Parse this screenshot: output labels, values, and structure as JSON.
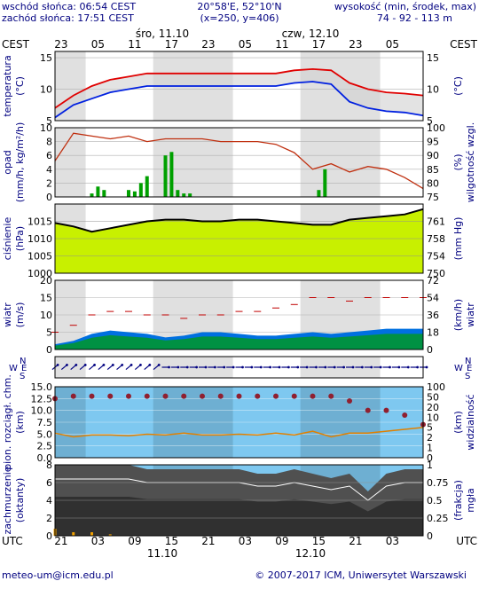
{
  "header": {
    "sunrise": "wschód słońca: 06:54 CEST",
    "sunset": "zachód słońca: 17:51 CEST",
    "coords": "20°58'E, 52°10'N",
    "grid": "(x=250, y=406)",
    "elevation_label": "wysokość (min, środek, max)",
    "elevation_values": "74 - 92 - 113 m"
  },
  "timeline": {
    "tz_top": "CEST",
    "tz_bottom": "UTC",
    "day1": "śro, 11.10",
    "day2": "czw, 12.10",
    "top_hours": [
      "23",
      "05",
      "11",
      "17",
      "23",
      "05",
      "11",
      "17",
      "23",
      "05"
    ],
    "bottom_hours": [
      "21",
      "03",
      "09",
      "15",
      "21",
      "03",
      "09",
      "15",
      "21",
      "03"
    ],
    "bottom_day1": "11.10",
    "bottom_day2": "12.10"
  },
  "footer": {
    "email": "meteo-um@icm.edu.pl",
    "copyright": "© 2007-2017 ICM, Uniwersytet Warszawski"
  },
  "colors": {
    "text": "#000080",
    "temp_max": "#e00000",
    "temp_min": "#0020e0",
    "humidity": "#c03010",
    "pressure_band": "#c8f000",
    "wind_fill": "#0070e0",
    "wind_green": "#00a000",
    "cloud_dark": "#505050",
    "sky": "#7ec8f0",
    "rain": "#00a000"
  },
  "chart_data": [
    {
      "type": "line",
      "name": "temperatura",
      "ylabel_left": "temperatura (°C)",
      "ylabel_right": "(°C)",
      "ylim": [
        5,
        16
      ],
      "yticks": [
        5,
        10,
        15
      ],
      "x_hours_utc": [
        0,
        3,
        6,
        9,
        12,
        15,
        18,
        21,
        24,
        27,
        30,
        33,
        36,
        39,
        42,
        45,
        48,
        51,
        54,
        57,
        60
      ],
      "series": [
        {
          "key": "max",
          "values": [
            7.0,
            9.0,
            10.5,
            11.5,
            12.0,
            12.5,
            12.5,
            12.5,
            12.5,
            12.5,
            12.5,
            12.5,
            12.5,
            13.0,
            13.2,
            13.0,
            11.0,
            10.0,
            9.5,
            9.3,
            9.0
          ]
        },
        {
          "key": "min",
          "values": [
            5.5,
            7.5,
            8.5,
            9.5,
            10.0,
            10.5,
            10.5,
            10.5,
            10.5,
            10.5,
            10.5,
            10.5,
            10.5,
            11.0,
            11.2,
            10.8,
            8.0,
            7.0,
            6.5,
            6.3,
            5.8
          ]
        }
      ]
    },
    {
      "type": "bar",
      "name": "opad i wilgotność",
      "ylabel_left": "opad (mm/h, kg/m²/h)",
      "ylabel_right": "wilgotność wzgl. (%)",
      "ylim": [
        0,
        10
      ],
      "yticks": [
        0,
        2,
        4,
        6,
        8,
        10
      ],
      "ylim_right": [
        75,
        100
      ],
      "yticks_right": [
        75,
        80,
        85,
        90,
        95,
        100
      ],
      "precip_x_hours_utc": [
        6,
        7,
        8,
        12,
        13,
        14,
        15,
        18,
        19,
        20,
        21,
        22,
        43,
        44
      ],
      "precip_values": [
        0.5,
        1.5,
        1.0,
        1.0,
        0.8,
        2.0,
        3.0,
        6.0,
        6.5,
        1.0,
        0.5,
        0.5,
        1.0,
        4.0
      ],
      "humidity_x_hours_utc": [
        0,
        3,
        6,
        9,
        12,
        15,
        18,
        21,
        24,
        27,
        30,
        33,
        36,
        39,
        42,
        45,
        48,
        51,
        54,
        57,
        60
      ],
      "humidity_values": [
        88,
        98,
        97,
        96,
        97,
        95,
        96,
        96,
        96,
        95,
        95,
        95,
        94,
        91,
        85,
        87,
        84,
        86,
        85,
        82,
        78
      ]
    },
    {
      "type": "area",
      "name": "ciśnienie",
      "ylabel_left": "ciśnienie (hPa)",
      "ylabel_right": "(mm Hg)",
      "ylim": [
        1000,
        1020
      ],
      "yticks": [
        1000,
        1005,
        1010,
        1015
      ],
      "yticks_right": [
        750,
        754,
        758,
        761
      ],
      "x_hours_utc": [
        0,
        3,
        6,
        9,
        12,
        15,
        18,
        21,
        24,
        27,
        30,
        33,
        36,
        39,
        42,
        45,
        48,
        51,
        54,
        57,
        60
      ],
      "values": [
        1014.5,
        1013.5,
        1012.0,
        1013.0,
        1014.0,
        1015.0,
        1015.5,
        1015.5,
        1015.0,
        1015.0,
        1015.5,
        1015.5,
        1015.0,
        1014.5,
        1014.0,
        1014.0,
        1015.5,
        1016.0,
        1016.5,
        1017.0,
        1018.5
      ]
    },
    {
      "type": "area",
      "name": "wiatr",
      "ylabel_left": "wiatr (m/s)",
      "ylabel_right": "(km/h) wiatr",
      "ylim": [
        0,
        20
      ],
      "yticks": [
        0,
        5,
        10,
        15,
        20
      ],
      "yticks_right": [
        0,
        18,
        36,
        54,
        72
      ],
      "x_hours_utc": [
        0,
        3,
        6,
        9,
        12,
        15,
        18,
        21,
        24,
        27,
        30,
        33,
        36,
        39,
        42,
        45,
        48,
        51,
        54,
        57,
        60
      ],
      "speed_values": [
        1.5,
        2.5,
        4.5,
        5.5,
        5.0,
        4.5,
        3.5,
        4.0,
        5.0,
        5.0,
        4.5,
        4.0,
        4.0,
        4.5,
        5.0,
        4.5,
        5.0,
        5.5,
        6.0,
        6.0,
        6.0
      ],
      "gust_values": [
        5,
        7,
        10,
        11,
        11,
        10,
        10,
        9,
        10,
        10,
        11,
        11,
        12,
        13,
        15,
        15,
        14,
        15,
        15,
        15,
        15
      ]
    },
    {
      "type": "scatter",
      "name": "pionowy rozciągł. chm.",
      "ylabel_left": "pion. rozciągł. chm. (km)",
      "ylabel_right": "(km) widzialność",
      "ylim": [
        0,
        15
      ],
      "yticks": [
        0.0,
        2.5,
        5.0,
        7.5,
        10.0,
        12.5,
        15.0
      ],
      "yticks_right": [
        0,
        1,
        2,
        3,
        4,
        5,
        6,
        7,
        8,
        9,
        10,
        20,
        50,
        100
      ],
      "x_hours_utc": [
        0,
        3,
        6,
        9,
        12,
        15,
        18,
        21,
        24,
        27,
        30,
        33,
        36,
        39,
        42,
        45,
        48,
        51,
        54,
        57,
        60
      ],
      "cloud_top_values": [
        12.5,
        13.0,
        13.0,
        13.0,
        13.0,
        13.0,
        13.0,
        13.0,
        13.0,
        13.0,
        13.0,
        13.0,
        13.0,
        13.0,
        13.0,
        13.0,
        12.0,
        10.0,
        10.0,
        9.0,
        7.0
      ],
      "visibility_values": [
        6.5,
        5.5,
        6.0,
        6.0,
        5.8,
        6.2,
        6.0,
        6.5,
        6.0,
        6.0,
        6.2,
        6.0,
        6.5,
        6.0,
        7.0,
        5.5,
        6.5,
        6.5,
        7.0,
        7.5,
        8.0
      ]
    },
    {
      "type": "area",
      "name": "zachmurzenie",
      "ylabel_left": "zachmurzenie (oktanty)",
      "ylabel_right": "(frakcja) mgła",
      "ylim": [
        0,
        8
      ],
      "yticks": [
        0,
        2,
        4,
        6,
        8
      ],
      "yticks_right": [
        0,
        0.25,
        0.5,
        0.75,
        1
      ],
      "x_hours_utc": [
        0,
        3,
        6,
        9,
        12,
        15,
        18,
        21,
        24,
        27,
        30,
        33,
        36,
        39,
        42,
        45,
        48,
        51,
        54,
        57,
        60
      ],
      "cloud_values": [
        8,
        8,
        8,
        8,
        8,
        7.5,
        7.5,
        7.5,
        7.5,
        7.5,
        7.5,
        7.0,
        7.0,
        7.5,
        7.0,
        6.5,
        7.0,
        5.0,
        7.0,
        7.5,
        7.5
      ],
      "fog_fraction": [
        0.1,
        0.05,
        0.05,
        0.02,
        0.0,
        0.0,
        0.0,
        0.0,
        0.0,
        0.0,
        0.0,
        0.0,
        0.0,
        0.0,
        0.0,
        0.0,
        0.0,
        0.0,
        0.0,
        0.0,
        0.0
      ]
    }
  ]
}
